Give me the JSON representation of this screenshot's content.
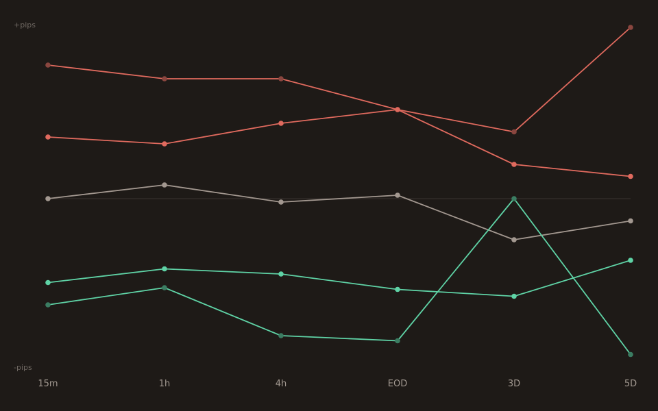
{
  "colors": {
    "background": "#1e1a17",
    "zero_line": "#3a3430",
    "y_label": "#6f6862",
    "x_label": "#a39a92",
    "series_red": "#e06a5e",
    "series_red_dark_marker": "#8a463f",
    "series_gray": "#a39890",
    "series_teal": "#5fd3a6",
    "series_teal_dark_marker": "#3b7d62"
  },
  "chart_data": {
    "type": "line",
    "title": "",
    "xlabel": "",
    "ylabel": "",
    "y_top_label": "+pips",
    "y_bottom_label": "-pips",
    "categories": [
      "15m",
      "1h",
      "4h",
      "EOD",
      "3D",
      "5D"
    ],
    "ylim": [
      -1,
      1
    ],
    "zero_line": true,
    "grid": false,
    "legend": "none",
    "series": [
      {
        "color_key": "series_red",
        "marker_key": "series_red_dark_marker",
        "values": [
          0.78,
          0.7,
          0.7,
          0.52,
          0.39,
          1.0
        ]
      },
      {
        "color_key": "series_red",
        "marker_key": "series_red",
        "values": [
          0.36,
          0.32,
          0.44,
          0.52,
          0.2,
          0.13
        ]
      },
      {
        "color_key": "series_gray",
        "marker_key": "series_gray",
        "values": [
          0.0,
          0.08,
          -0.02,
          0.02,
          -0.24,
          -0.13
        ]
      },
      {
        "color_key": "series_teal",
        "marker_key": "series_teal",
        "values": [
          -0.49,
          -0.41,
          -0.44,
          -0.53,
          -0.57,
          -0.36
        ]
      },
      {
        "color_key": "series_teal",
        "marker_key": "series_teal_dark_marker",
        "values": [
          -0.62,
          -0.52,
          -0.8,
          -0.83,
          0.0,
          -0.91
        ]
      }
    ]
  }
}
